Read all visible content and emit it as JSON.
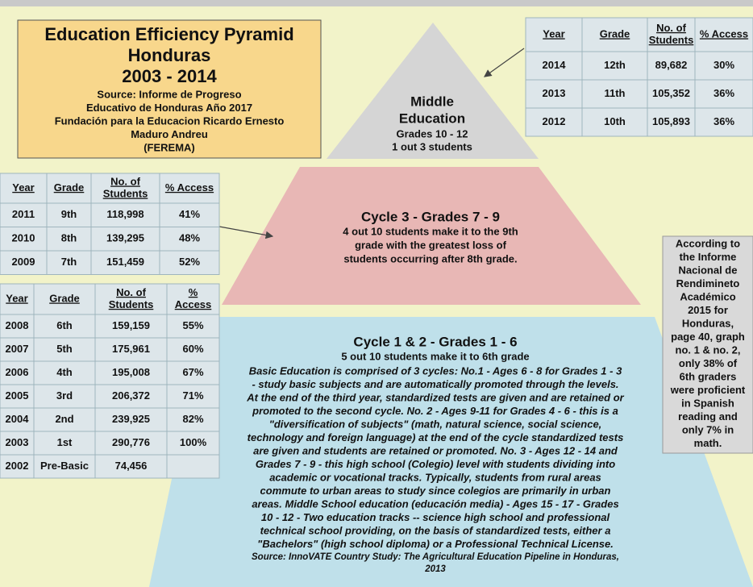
{
  "title_box": {
    "title": [
      "Education Efficiency Pyramid",
      "Honduras",
      "2003 - 2014"
    ],
    "source": [
      "Source: Informe de Progreso",
      "Educativo de Honduras Año 2017",
      "Fundación para la Educacion Ricardo Ernesto",
      "Maduro Andreu",
      "(FEREMA)"
    ]
  },
  "pyramid": {
    "middle": {
      "heading": [
        "Middle",
        "Education"
      ],
      "lines": [
        "Grades 10 - 12",
        "1 out 3 students"
      ]
    },
    "cycle3": {
      "heading": "Cycle 3 - Grades 7 - 9",
      "lines": [
        "4 out 10 students make it to the 9th",
        "grade with the greatest loss of",
        "students occurring after 8th grade."
      ]
    },
    "cycle12": {
      "heading": "Cycle 1 & 2  - Grades 1 - 6",
      "subheading": "5 out 10 students make it to 6th grade",
      "body": [
        "Basic Education is comprised of 3 cycles: No.1 - Ages 6 - 8 for Grades 1 - 3",
        "- study basic subjects and are automatically promoted through the levels.",
        "At the end of the third year, standardized tests are given and are retained or",
        "promoted to the second cycle.  No. 2 - Ages 9-11 for Grades 4 - 6 - this is a",
        "\"diversification of subjects\" (math, natural science, social science,",
        "technology and foreign language) at the end of the cycle standardized tests",
        "are given and students are retained or promoted.  No. 3 - Ages 12 - 14 and",
        "Grades 7 - 9 - this high school (Colegio) level with students dividing into",
        "academic or vocational tracks.  Typically, students from rural areas",
        "commute to urban areas to study since colegios are primarily in urban",
        "areas.  Middle School education (educación media) - Ages 15 - 17 - Grades",
        "10 - 12 - Two education tracks -- science high school and professional",
        "technical school providing, on the basis of standardized tests,  either a",
        "\"Bachelors\" (high school diploma) or a Professional Technical License."
      ],
      "source": [
        "Source: InnoVATE Country Study: The Agricultural Education Pipeline in Honduras,",
        "2013"
      ]
    }
  },
  "tables": [
    {
      "header": [
        "Year",
        "Grade",
        [
          "No. of",
          "Students"
        ],
        "% Access"
      ],
      "rows": [
        [
          "2014",
          "12th",
          "89,682",
          "30%"
        ],
        [
          "2013",
          "11th",
          "105,352",
          "36%"
        ],
        [
          "2012",
          "10th",
          "105,893",
          "36%"
        ]
      ]
    },
    {
      "header": [
        "Year",
        "Grade",
        [
          "No. of",
          "Students"
        ],
        "% Access"
      ],
      "rows": [
        [
          "2011",
          "9th",
          "118,998",
          "41%"
        ],
        [
          "2010",
          "8th",
          "139,295",
          "48%"
        ],
        [
          "2009",
          "7th",
          "151,459",
          "52%"
        ]
      ]
    },
    {
      "header": [
        "Year",
        "Grade",
        [
          "No. of",
          "Students"
        ],
        [
          "%",
          "Access"
        ]
      ],
      "rows": [
        [
          "2008",
          "6th",
          "159,159",
          "55%"
        ],
        [
          "2007",
          "5th",
          "175,961",
          "60%"
        ],
        [
          "2006",
          "4th",
          "195,008",
          "67%"
        ],
        [
          "2005",
          "3rd",
          "206,372",
          "71%"
        ],
        [
          "2004",
          "2nd",
          "239,925",
          "82%"
        ],
        [
          "2003",
          "1st",
          "290,776",
          "100%"
        ],
        [
          "2002",
          "Pre-Basic",
          "74,456",
          null
        ]
      ]
    }
  ],
  "note": [
    "According to",
    "the Informe",
    "Nacional de",
    "Rendimineto",
    "Académico",
    "2015 for",
    "Honduras,",
    "page 40, graph",
    "no. 1 & no. 2,",
    "only 38% of",
    "6th graders",
    "were proficient",
    "in Spanish",
    "reading and",
    "only 7% in",
    "math."
  ]
}
